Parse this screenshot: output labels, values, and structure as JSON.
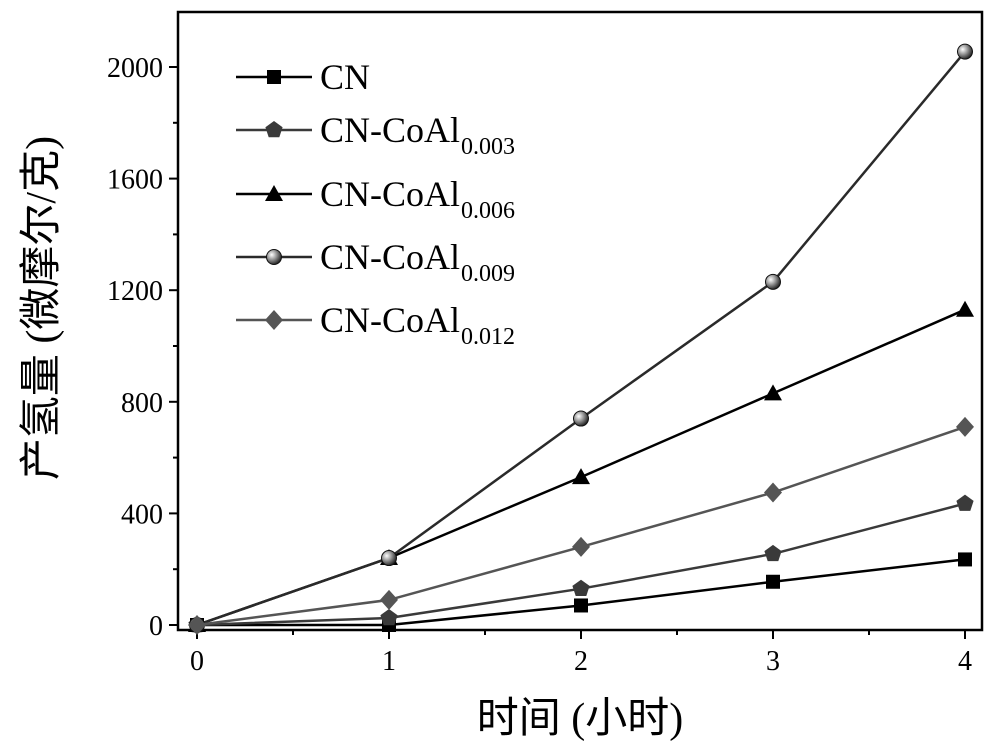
{
  "chart_data": {
    "type": "line",
    "xlabel": "时间 (小时)",
    "ylabel": "产氢量 (微摩尔/克)",
    "xlim": [
      -0.05,
      4.05
    ],
    "ylim": [
      -15,
      2100
    ],
    "xticks": [
      "0",
      "1",
      "2",
      "3",
      "4"
    ],
    "yticks": [
      "0",
      "400",
      "800",
      "1200",
      "1600",
      "2000"
    ],
    "x": [
      0,
      1,
      2,
      3,
      4
    ],
    "grid": false,
    "legend_position": "top-left",
    "series": [
      {
        "base": "CN",
        "sub": "",
        "marker": "square",
        "color": "#000000",
        "values": [
          0,
          0,
          70,
          155,
          235
        ]
      },
      {
        "base": "CN-CoAl",
        "sub": "0.003",
        "marker": "pentagon",
        "color": "#3a3a3a",
        "values": [
          0,
          25,
          130,
          255,
          435
        ]
      },
      {
        "base": "CN-CoAl",
        "sub": "0.006",
        "marker": "triangle",
        "color": "#000000",
        "values": [
          0,
          240,
          530,
          830,
          1130
        ]
      },
      {
        "base": "CN-CoAl",
        "sub": "0.009",
        "marker": "sphere",
        "color": "#2a2a2a",
        "values": [
          0,
          240,
          740,
          1230,
          2055
        ]
      },
      {
        "base": "CN-CoAl",
        "sub": "0.012",
        "marker": "diamond",
        "color": "#555555",
        "values": [
          0,
          90,
          280,
          475,
          710
        ]
      }
    ]
  }
}
